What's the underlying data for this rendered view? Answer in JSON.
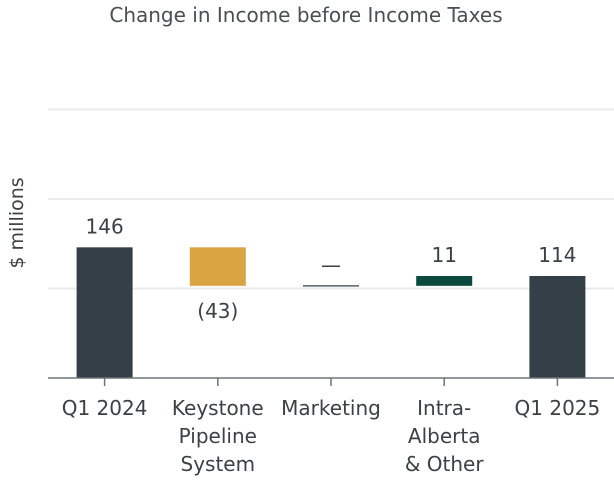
{
  "chart_data": {
    "type": "bar",
    "subtype": "waterfall",
    "title": "Change in Income before Income Taxes",
    "xlabel": "",
    "ylabel": "$ millions",
    "ylim": [
      0,
      300
    ],
    "grid": true,
    "categories": [
      [
        "Q1 2024"
      ],
      [
        "Keystone",
        "Pipeline",
        "System"
      ],
      [
        "Marketing"
      ],
      [
        "Intra-",
        "Alberta",
        "& Other"
      ],
      [
        "Q1 2025"
      ]
    ],
    "steps": [
      {
        "kind": "total",
        "value": 146,
        "label": "146",
        "color": "#343f48"
      },
      {
        "kind": "delta",
        "value": -43,
        "label": "(43)",
        "color": "#d9a441"
      },
      {
        "kind": "delta",
        "value": 0,
        "label": "—",
        "color": "#343f48"
      },
      {
        "kind": "delta",
        "value": 11,
        "label": "11",
        "color": "#0b4a3e"
      },
      {
        "kind": "total",
        "value": 114,
        "label": "114",
        "color": "#343f48"
      }
    ],
    "colors": {
      "total": "#343f48",
      "decrease": "#d9a441",
      "increase": "#0b4a3e",
      "grid": "#e9eaea",
      "axis": "#6d7378"
    }
  }
}
